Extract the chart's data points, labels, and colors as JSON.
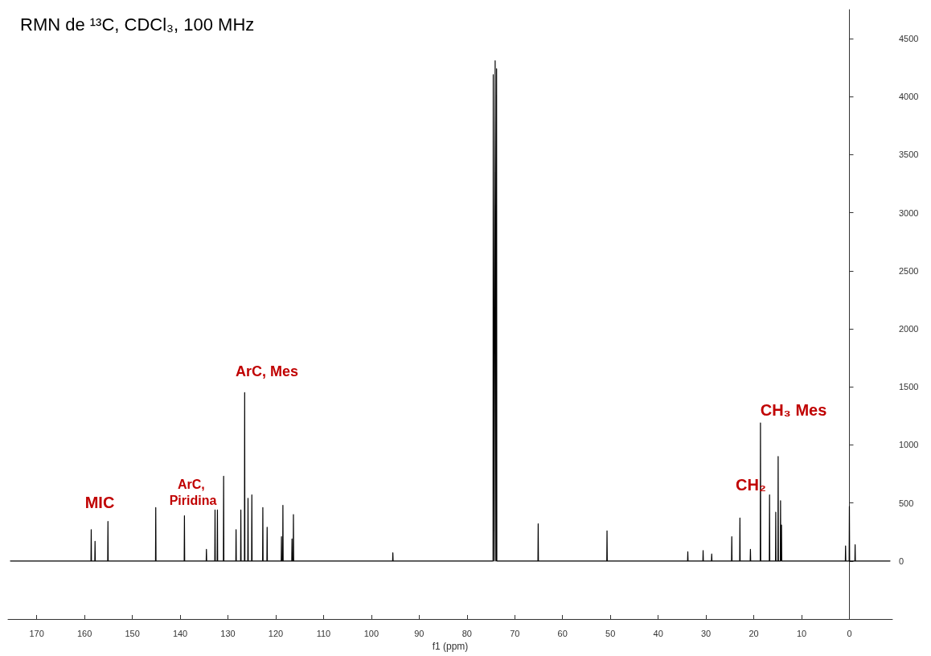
{
  "chart_data": {
    "type": "line",
    "title": "RMN de ¹³C, CDCl₃, 100 MHz",
    "xlabel": "f1 (ppm)",
    "xlim": [
      176,
      -9
    ],
    "xticks": [
      0,
      10,
      20,
      30,
      40,
      50,
      60,
      70,
      80,
      90,
      100,
      110,
      120,
      130,
      140,
      150,
      160,
      170
    ],
    "ylim": [
      -500,
      4750
    ],
    "yticks": [
      0,
      500,
      1000,
      1500,
      2000,
      2500,
      3000,
      3500,
      4000,
      4500
    ],
    "marker": "none",
    "line_style": "solid",
    "series": [
      {
        "color": "#000000",
        "x": [
          175.5,
          158.65,
          158.6,
          158.55,
          157.85,
          157.8,
          157.75,
          155.15,
          155.1,
          155.05,
          145.15,
          145.1,
          145.05,
          139.15,
          139.1,
          139.05,
          134.55,
          134.5,
          134.45,
          132.75,
          132.7,
          132.65,
          132.25,
          132.2,
          132.15,
          130.95,
          130.9,
          130.85,
          128.35,
          128.3,
          128.25,
          127.35,
          127.3,
          127.25,
          126.55,
          126.5,
          126.45,
          125.85,
          125.8,
          125.75,
          125.05,
          125.0,
          124.95,
          122.75,
          122.7,
          122.65,
          121.85,
          121.8,
          121.75,
          118.85,
          118.8,
          118.75,
          118.55,
          118.5,
          118.45,
          116.65,
          116.6,
          116.55,
          116.35,
          116.3,
          116.25,
          95.55,
          95.5,
          95.45,
          74.55,
          74.5,
          74.3,
          74.1,
          73.95,
          73.8,
          73.75,
          65.15,
          65.1,
          65.05,
          50.75,
          50.7,
          50.65,
          33.85,
          33.8,
          33.75,
          30.65,
          30.6,
          30.55,
          28.85,
          28.8,
          28.75,
          24.65,
          24.6,
          24.55,
          22.95,
          22.9,
          22.85,
          20.75,
          20.7,
          20.65,
          18.65,
          18.6,
          18.55,
          16.75,
          16.7,
          16.65,
          15.45,
          15.4,
          15.35,
          14.95,
          14.9,
          14.85,
          14.45,
          14.4,
          14.35,
          14.25,
          14.2,
          14.15,
          0.85,
          0.8,
          0.75,
          0.05,
          0,
          -0.05,
          -1.15,
          -1.2,
          -1.25,
          -8.5
        ],
        "values": [
          0,
          0,
          270,
          0,
          0,
          170,
          0,
          0,
          340,
          0,
          0,
          460,
          0,
          0,
          390,
          0,
          0,
          100,
          0,
          0,
          440,
          0,
          0,
          440,
          0,
          0,
          730,
          0,
          0,
          270,
          0,
          0,
          440,
          0,
          0,
          1450,
          0,
          0,
          540,
          0,
          0,
          570,
          0,
          0,
          460,
          0,
          0,
          290,
          0,
          0,
          210,
          0,
          0,
          480,
          0,
          0,
          190,
          0,
          0,
          400,
          0,
          0,
          70,
          0,
          0,
          4190,
          0,
          4310,
          0,
          4240,
          0,
          0,
          320,
          0,
          0,
          260,
          0,
          0,
          80,
          0,
          0,
          90,
          0,
          0,
          60,
          0,
          0,
          210,
          0,
          0,
          370,
          0,
          0,
          100,
          0,
          0,
          1190,
          0,
          0,
          570,
          0,
          0,
          420,
          0,
          0,
          900,
          0,
          0,
          520,
          0,
          0,
          310,
          0,
          0,
          130,
          0,
          0,
          470,
          0,
          0,
          140,
          0,
          0
        ]
      }
    ],
    "annotations": [
      "MIC",
      "ArC, Piridina",
      "ArC, Mes",
      "CH₂",
      "CH₃ Mes"
    ]
  }
}
